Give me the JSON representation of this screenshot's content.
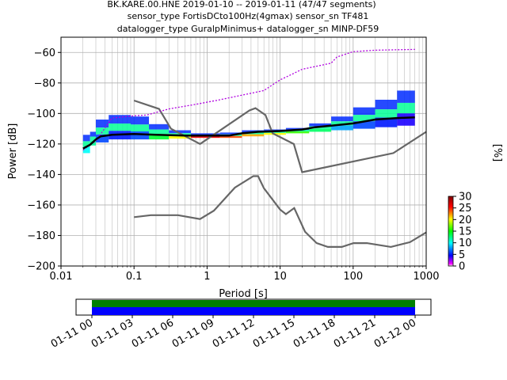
{
  "chart_data": {
    "type": "heatmap",
    "title_lines": [
      "BK.KARE.00.HNE   2019-01-10 -- 2019-01-11  (47/47 segments)",
      "sensor_type FortisDCto100Hz(4gmax) sensor_sn TF481",
      "datalogger_type GuralpMinimus+ datalogger_sn MINP-DF59"
    ],
    "xlabel": "Period [s]",
    "ylabel": "Power [dB]",
    "xscale": "log",
    "xlim": [
      0.01,
      1000
    ],
    "ylim": [
      -200,
      -50
    ],
    "xticks": [
      {
        "v": 0.01,
        "label": "0.01"
      },
      {
        "v": 0.1,
        "label": "0.1"
      },
      {
        "v": 1,
        "label": "1"
      },
      {
        "v": 10,
        "label": "10"
      },
      {
        "v": 100,
        "label": "100"
      },
      {
        "v": 1000,
        "label": "1000"
      }
    ],
    "yticks": [
      {
        "v": -60,
        "label": "−60"
      },
      {
        "v": -80,
        "label": "−80"
      },
      {
        "v": -100,
        "label": "−100"
      },
      {
        "v": -120,
        "label": "−120"
      },
      {
        "v": -140,
        "label": "−140"
      },
      {
        "v": -160,
        "label": "−160"
      },
      {
        "v": -180,
        "label": "−180"
      },
      {
        "v": -200,
        "label": "−200"
      }
    ],
    "grid": true,
    "colorbar": {
      "label": "[%]",
      "min": 0,
      "max": 30,
      "ticks": [
        {
          "v": 0,
          "label": "0"
        },
        {
          "v": 5,
          "label": "5"
        },
        {
          "v": 10,
          "label": "10"
        },
        {
          "v": 15,
          "label": "15"
        },
        {
          "v": 20,
          "label": "20"
        },
        {
          "v": 25,
          "label": "25"
        },
        {
          "v": 30,
          "label": "30"
        }
      ]
    },
    "noise_model_high": [
      [
        0.1,
        -91.5
      ],
      [
        0.22,
        -97
      ],
      [
        0.32,
        -110
      ],
      [
        0.8,
        -120
      ],
      [
        3.8,
        -98
      ],
      [
        4.6,
        -96.5
      ],
      [
        6.3,
        -101
      ],
      [
        7.9,
        -113
      ],
      [
        15.4,
        -120
      ],
      [
        20,
        -138.5
      ],
      [
        354.8,
        -126
      ],
      [
        1000,
        -112
      ]
    ],
    "noise_model_low": [
      [
        0.1,
        -168
      ],
      [
        0.17,
        -166.7
      ],
      [
        0.4,
        -166.7
      ],
      [
        0.8,
        -169.2
      ],
      [
        1.24,
        -163.7
      ],
      [
        2.4,
        -148.6
      ],
      [
        4.3,
        -141.1
      ],
      [
        5.0,
        -141.1
      ],
      [
        6.0,
        -149
      ],
      [
        10,
        -163
      ],
      [
        12,
        -166
      ],
      [
        15.6,
        -162
      ],
      [
        21.9,
        -177.5
      ],
      [
        31.6,
        -185
      ],
      [
        45,
        -187.5
      ],
      [
        70,
        -187.5
      ],
      [
        101,
        -185
      ],
      [
        154,
        -185
      ],
      [
        328,
        -187.5
      ],
      [
        600,
        -184.4
      ],
      [
        1000,
        -178
      ]
    ],
    "mode_curve": [
      [
        0.02,
        -123
      ],
      [
        0.025,
        -120.5
      ],
      [
        0.03,
        -117
      ],
      [
        0.035,
        -115
      ],
      [
        0.05,
        -114
      ],
      [
        0.1,
        -113.5
      ],
      [
        0.2,
        -114
      ],
      [
        0.5,
        -114.5
      ],
      [
        1,
        -114.5
      ],
      [
        2,
        -114.5
      ],
      [
        3,
        -113
      ],
      [
        5,
        -112
      ],
      [
        10,
        -111.5
      ],
      [
        20,
        -110.5
      ],
      [
        30,
        -109
      ],
      [
        50,
        -108
      ],
      [
        100,
        -106.5
      ],
      [
        200,
        -104
      ],
      [
        400,
        -103
      ],
      [
        700,
        -102.5
      ]
    ],
    "max_curve": [
      [
        0.02,
        -124
      ],
      [
        0.03,
        -118
      ],
      [
        0.05,
        -103
      ],
      [
        0.08,
        -102
      ],
      [
        0.1,
        -101.5
      ],
      [
        0.15,
        -101
      ],
      [
        0.3,
        -97
      ],
      [
        0.7,
        -94
      ],
      [
        1.5,
        -91
      ],
      [
        3,
        -88
      ],
      [
        6,
        -85
      ],
      [
        8,
        -81
      ],
      [
        10,
        -78
      ],
      [
        15,
        -74
      ],
      [
        20,
        -71
      ],
      [
        50,
        -67
      ],
      [
        60,
        -63
      ],
      [
        80,
        -61
      ],
      [
        100,
        -59.5
      ],
      [
        200,
        -58.5
      ],
      [
        700,
        -58
      ]
    ],
    "density": [
      {
        "x": [
          0.02,
          0.025
        ],
        "ymin": -126,
        "ymax": -114,
        "v": 10
      },
      {
        "x": [
          0.025,
          0.03
        ],
        "ymin": -121,
        "ymax": -112,
        "v": 12
      },
      {
        "x": [
          0.03,
          0.045
        ],
        "ymin": -119,
        "ymax": -104,
        "v": 6
      },
      {
        "x": [
          0.045,
          0.09
        ],
        "ymin": -117,
        "ymax": -101,
        "v": 5
      },
      {
        "x": [
          0.09,
          0.16
        ],
        "ymin": -117,
        "ymax": -102,
        "v": 6
      },
      {
        "x": [
          0.16,
          0.3
        ],
        "ymin": -117,
        "ymax": -107,
        "v": 14
      },
      {
        "x": [
          0.3,
          0.6
        ],
        "ymin": -116.5,
        "ymax": -111,
        "v": 20
      },
      {
        "x": [
          0.6,
          1.5
        ],
        "ymin": -116,
        "ymax": -113,
        "v": 26
      },
      {
        "x": [
          1.5,
          3
        ],
        "ymin": -116,
        "ymax": -112.5,
        "v": 24
      },
      {
        "x": [
          3,
          6
        ],
        "ymin": -115,
        "ymax": -111,
        "v": 22
      },
      {
        "x": [
          6,
          12
        ],
        "ymin": -114,
        "ymax": -110.5,
        "v": 20
      },
      {
        "x": [
          12,
          25
        ],
        "ymin": -113,
        "ymax": -109.5,
        "v": 16
      },
      {
        "x": [
          25,
          50
        ],
        "ymin": -112,
        "ymax": -106.5,
        "v": 13
      },
      {
        "x": [
          50,
          100
        ],
        "ymin": -111,
        "ymax": -102,
        "v": 8
      },
      {
        "x": [
          100,
          200
        ],
        "ymin": -110,
        "ymax": -96,
        "v": 6
      },
      {
        "x": [
          200,
          400
        ],
        "ymin": -109,
        "ymax": -91,
        "v": 5
      },
      {
        "x": [
          400,
          700
        ],
        "ymin": -108,
        "ymax": -85,
        "v": 4
      }
    ],
    "timeline": {
      "ticks": [
        "01-11 00",
        "01-11 03",
        "01-11 06",
        "01-11 09",
        "01-11 12",
        "01-11 15",
        "01-11 18",
        "01-11 21",
        "01-12 00"
      ],
      "data_fraction": 1.0,
      "used_fraction": 1.0,
      "colors": {
        "data": "#008000",
        "used": "#0000ff"
      }
    },
    "colors": {
      "mode": "#000000",
      "noise_model": "#666666",
      "max": "#b000e0",
      "grid": "#b0b0b0"
    }
  }
}
